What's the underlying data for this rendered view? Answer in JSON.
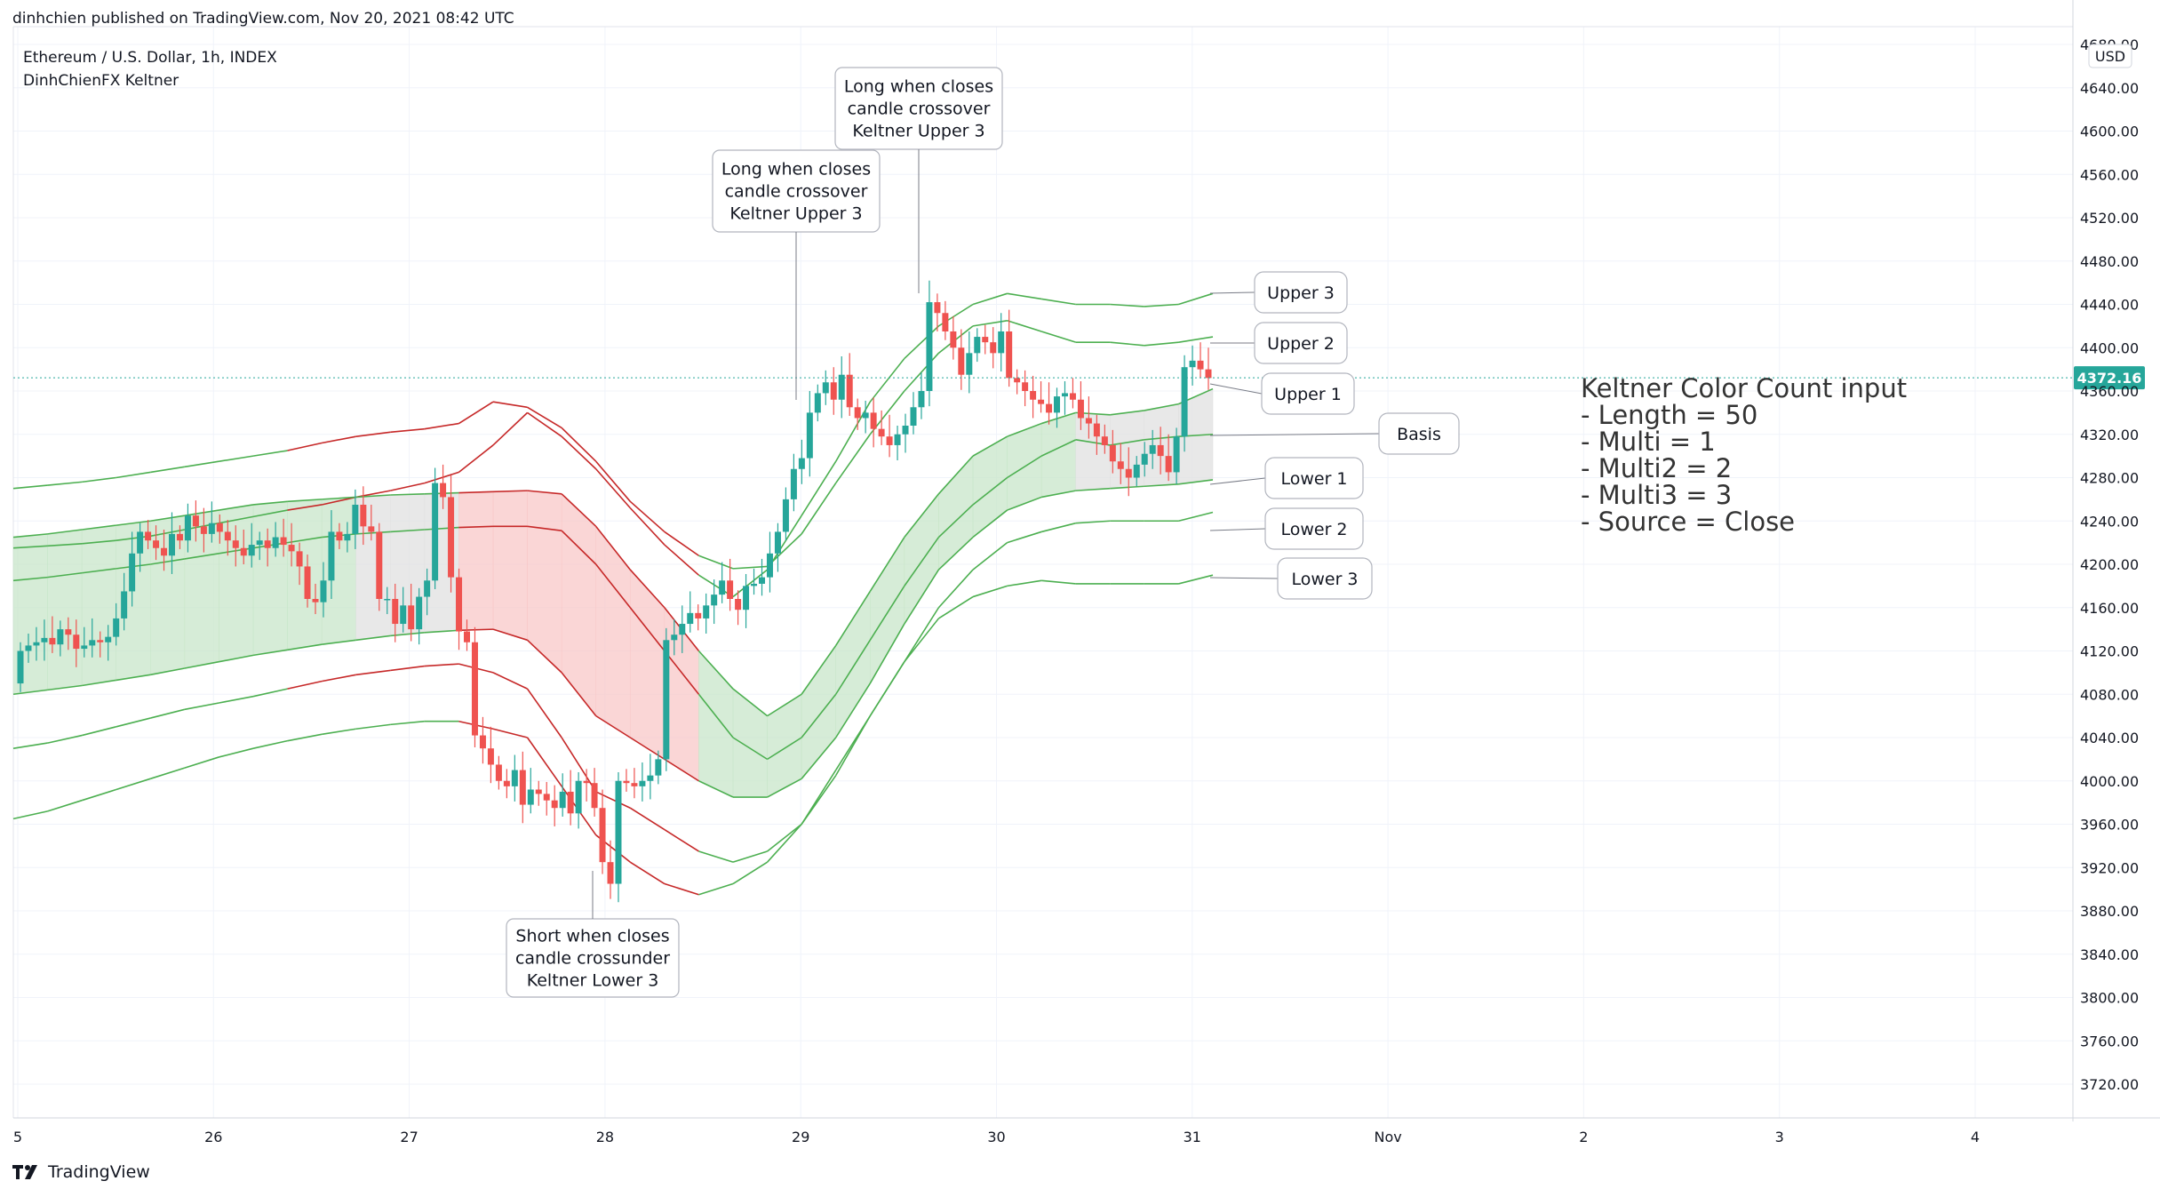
{
  "header": {
    "published_by": "dinhchien published on TradingView.com, Nov 20, 2021 08:42 UTC"
  },
  "brand": {
    "name": "TradingView",
    "logo_icon": "tradingview-logo-icon"
  },
  "chart_data": {
    "type": "candlestick",
    "title": "Ethereum / U.S. Dollar, 1h, INDEX",
    "indicator": "DinhChienFX Keltner",
    "currency": "USD",
    "last_price": "4372.16",
    "last_price_value": 4372.16,
    "ylim": [
      3680,
      4680
    ],
    "y_ticks": [
      "4680.00",
      "4640.00",
      "4600.00",
      "4560.00",
      "4520.00",
      "4480.00",
      "4440.00",
      "4400.00",
      "4360.00",
      "4320.00",
      "4280.00",
      "4240.00",
      "4200.00",
      "4160.00",
      "4120.00",
      "4080.00",
      "4040.00",
      "4000.00",
      "3960.00",
      "3920.00",
      "3880.00",
      "3840.00",
      "3800.00",
      "3760.00",
      "3720.00"
    ],
    "x_ticks": [
      "5",
      "26",
      "27",
      "28",
      "29",
      "30",
      "31",
      "Nov",
      "2",
      "3",
      "4"
    ],
    "colors": {
      "up": "#26a69a",
      "down": "#ef5350",
      "band_green": "#4caf50",
      "band_red": "#c62828",
      "fill_green": "#c8e6c9",
      "fill_red": "#f8c8c8",
      "fill_gray": "#e0e0e0",
      "last_price": "#26a69a"
    },
    "candle_closes": [
      4120,
      4125,
      4128,
      4132,
      4126,
      4140,
      4135,
      4122,
      4125,
      4130,
      4128,
      4133,
      4150,
      4175,
      4210,
      4230,
      4222,
      4215,
      4208,
      4228,
      4222,
      4245,
      4235,
      4228,
      4238,
      4230,
      4222,
      4215,
      4208,
      4218,
      4222,
      4215,
      4225,
      4218,
      4212,
      4198,
      4168,
      4165,
      4185,
      4230,
      4222,
      4228,
      4255,
      4235,
      4230,
      4168,
      4168,
      4145,
      4162,
      4140,
      4170,
      4185,
      4275,
      4262,
      4188,
      4138,
      4128,
      4042,
      4030,
      4015,
      4000,
      3995,
      4010,
      3978,
      3992,
      3988,
      3982,
      3975,
      3990,
      3970,
      4000,
      3998,
      3975,
      3925,
      3905,
      4000,
      3998,
      3995,
      4000,
      4005,
      4020,
      4130,
      4135,
      4145,
      4155,
      4150,
      4162,
      4172,
      4185,
      4168,
      4158,
      4180,
      4182,
      4188,
      4210,
      4230,
      4260,
      4288,
      4298,
      4340,
      4358,
      4368,
      4352,
      4375,
      4345,
      4335,
      4340,
      4325,
      4318,
      4310,
      4320,
      4328,
      4345,
      4360,
      4442,
      4432,
      4415,
      4400,
      4375,
      4395,
      4410,
      4405,
      4395,
      4415,
      4372,
      4368,
      4360,
      4352,
      4348,
      4340,
      4355,
      4358,
      4352,
      4335,
      4330,
      4318,
      4310,
      4295,
      4288,
      4280,
      4292,
      4302,
      4310,
      4300,
      4285,
      4318,
      4382,
      4388,
      4380,
      4372
    ],
    "bands": {
      "basis": [
        4185,
        4188,
        4192,
        4196,
        4200,
        4205,
        4210,
        4215,
        4220,
        4225,
        4228,
        4230,
        4232,
        4234,
        4235,
        4235,
        4231,
        4200,
        4160,
        4120,
        4080,
        4040,
        4020,
        4040,
        4080,
        4130,
        4180,
        4225,
        4255,
        4280,
        4300,
        4315,
        4310,
        4315,
        4318,
        4320
      ],
      "upper1": [
        4225,
        4228,
        4232,
        4236,
        4240,
        4245,
        4250,
        4255,
        4258,
        4260,
        4262,
        4264,
        4265,
        4266,
        4267,
        4268,
        4265,
        4235,
        4195,
        4160,
        4120,
        4085,
        4060,
        4080,
        4125,
        4175,
        4225,
        4265,
        4300,
        4318,
        4330,
        4340,
        4338,
        4342,
        4348,
        4362
      ],
      "upper2": [
        4270,
        4273,
        4276,
        4280,
        4285,
        4290,
        4295,
        4300,
        4305,
        4312,
        4318,
        4322,
        4325,
        4330,
        4350,
        4345,
        4326,
        4295,
        4258,
        4230,
        4208,
        4196,
        4198,
        4228,
        4275,
        4320,
        4360,
        4395,
        4420,
        4425,
        4415,
        4405,
        4405,
        4402,
        4405,
        4410
      ],
      "upper3": [
        4215,
        4217,
        4219,
        4222,
        4226,
        4232,
        4238,
        4244,
        4250,
        4255,
        4262,
        4268,
        4275,
        4285,
        4310,
        4340,
        4318,
        4288,
        4252,
        4218,
        4190,
        4170,
        4195,
        4245,
        4295,
        4350,
        4390,
        4420,
        4440,
        4450,
        4445,
        4440,
        4440,
        4438,
        4440,
        4450
      ],
      "lower1": [
        4080,
        4084,
        4088,
        4093,
        4098,
        4104,
        4110,
        4116,
        4121,
        4126,
        4130,
        4134,
        4137,
        4139,
        4140,
        4130,
        4100,
        4060,
        4040,
        4020,
        4000,
        3985,
        3985,
        4002,
        4040,
        4090,
        4145,
        4195,
        4225,
        4250,
        4262,
        4268,
        4270,
        4272,
        4274,
        4278
      ],
      "lower2": [
        4030,
        4035,
        4042,
        4050,
        4058,
        4066,
        4072,
        4078,
        4085,
        4092,
        4098,
        4102,
        4106,
        4108,
        4100,
        4085,
        4040,
        3990,
        3975,
        3955,
        3935,
        3925,
        3935,
        3960,
        4005,
        4060,
        4110,
        4160,
        4195,
        4220,
        4230,
        4238,
        4240,
        4240,
        4240,
        4248
      ],
      "lower3": [
        3965,
        3972,
        3982,
        3992,
        4002,
        4012,
        4022,
        4030,
        4037,
        4043,
        4048,
        4052,
        4055,
        4055,
        4048,
        4040,
        3995,
        3950,
        3925,
        3905,
        3895,
        3905,
        3925,
        3960,
        4010,
        4060,
        4110,
        4150,
        4170,
        4180,
        4185,
        4182,
        4182,
        4182,
        4182,
        4190
      ]
    },
    "band_labels": [
      "Upper 3",
      "Upper 2",
      "Upper 1",
      "Basis",
      "Lower 1",
      "Lower 2",
      "Lower 3"
    ],
    "signals": [
      {
        "text": [
          "Long when closes",
          "candle crossover",
          "Keltner Upper 3"
        ]
      },
      {
        "text": [
          "Long when closes",
          "candle crossover",
          "Keltner Upper 3"
        ]
      },
      {
        "text": [
          "Short when closes",
          "candle crossunder",
          "Keltner Lower 3"
        ]
      }
    ],
    "info_box": {
      "title": "Keltner Color Count input",
      "lines": [
        "- Length = 50",
        "- Multi = 1",
        "- Multi2 = 2",
        "- Multi3 = 3",
        "- Source = Close"
      ]
    }
  }
}
